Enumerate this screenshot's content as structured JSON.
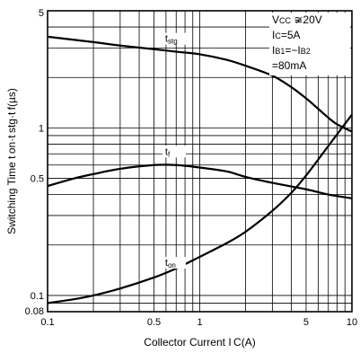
{
  "chart_data": {
    "type": "line",
    "x_scale": "log",
    "y_scale": "log",
    "xlim": [
      0.1,
      10
    ],
    "ylim": [
      0.08,
      5
    ],
    "xlabel": "Collector Current I C(A)",
    "ylabel": "Switching Time t on·t stg·t f(µs)",
    "x_ticks": [
      {
        "value": 0.1,
        "label": "0.1"
      },
      {
        "value": 0.5,
        "label": "0.5"
      },
      {
        "value": 1,
        "label": "1"
      },
      {
        "value": 5,
        "label": "5"
      },
      {
        "value": 10,
        "label": "10"
      }
    ],
    "y_ticks": [
      {
        "value": 0.08,
        "label": "0.08"
      },
      {
        "value": 0.1,
        "label": "0.1"
      },
      {
        "value": 0.5,
        "label": "0.5"
      },
      {
        "value": 1,
        "label": "1"
      },
      {
        "value": 5,
        "label": "5"
      }
    ],
    "grid": true,
    "series": [
      {
        "name": "tstg",
        "label_main": "t",
        "label_sub": "stg",
        "label_at": [
          0.66,
          3.3
        ],
        "points": [
          [
            0.1,
            3.5
          ],
          [
            0.2,
            3.25
          ],
          [
            0.3,
            3.1
          ],
          [
            0.5,
            2.95
          ],
          [
            0.7,
            2.85
          ],
          [
            1,
            2.75
          ],
          [
            1.5,
            2.55
          ],
          [
            2,
            2.35
          ],
          [
            3,
            2.05
          ],
          [
            4,
            1.75
          ],
          [
            5,
            1.5
          ],
          [
            6,
            1.3
          ],
          [
            7,
            1.15
          ],
          [
            8,
            1.05
          ],
          [
            10,
            0.95
          ]
        ]
      },
      {
        "name": "tf",
        "label_main": "t",
        "label_sub": "f",
        "label_at": [
          0.66,
          0.7
        ],
        "points": [
          [
            0.1,
            0.45
          ],
          [
            0.15,
            0.5
          ],
          [
            0.2,
            0.53
          ],
          [
            0.3,
            0.57
          ],
          [
            0.5,
            0.6
          ],
          [
            0.7,
            0.6
          ],
          [
            1,
            0.58
          ],
          [
            1.5,
            0.55
          ],
          [
            2,
            0.51
          ],
          [
            3,
            0.47
          ],
          [
            5,
            0.43
          ],
          [
            7,
            0.4
          ],
          [
            10,
            0.38
          ]
        ]
      },
      {
        "name": "ton",
        "label_main": "t",
        "label_sub": "on",
        "label_at": [
          0.66,
          0.152
        ],
        "points": [
          [
            0.1,
            0.09
          ],
          [
            0.15,
            0.095
          ],
          [
            0.2,
            0.1
          ],
          [
            0.3,
            0.11
          ],
          [
            0.5,
            0.128
          ],
          [
            0.7,
            0.145
          ],
          [
            1,
            0.17
          ],
          [
            1.5,
            0.205
          ],
          [
            2,
            0.24
          ],
          [
            3,
            0.32
          ],
          [
            4,
            0.41
          ],
          [
            5,
            0.52
          ],
          [
            7,
            0.78
          ],
          [
            10,
            1.2
          ]
        ]
      }
    ],
    "conditions": [
      {
        "main": "V",
        "sub": "CC",
        "rest": " ≆20V"
      },
      {
        "main": "I",
        "sub": "C",
        "rest": "=5A"
      },
      {
        "main": "I",
        "sub": "B1",
        "rest": "=−I",
        "sub2": "B2"
      },
      {
        "main": "",
        "sub": "",
        "rest": "=80mA"
      }
    ]
  }
}
